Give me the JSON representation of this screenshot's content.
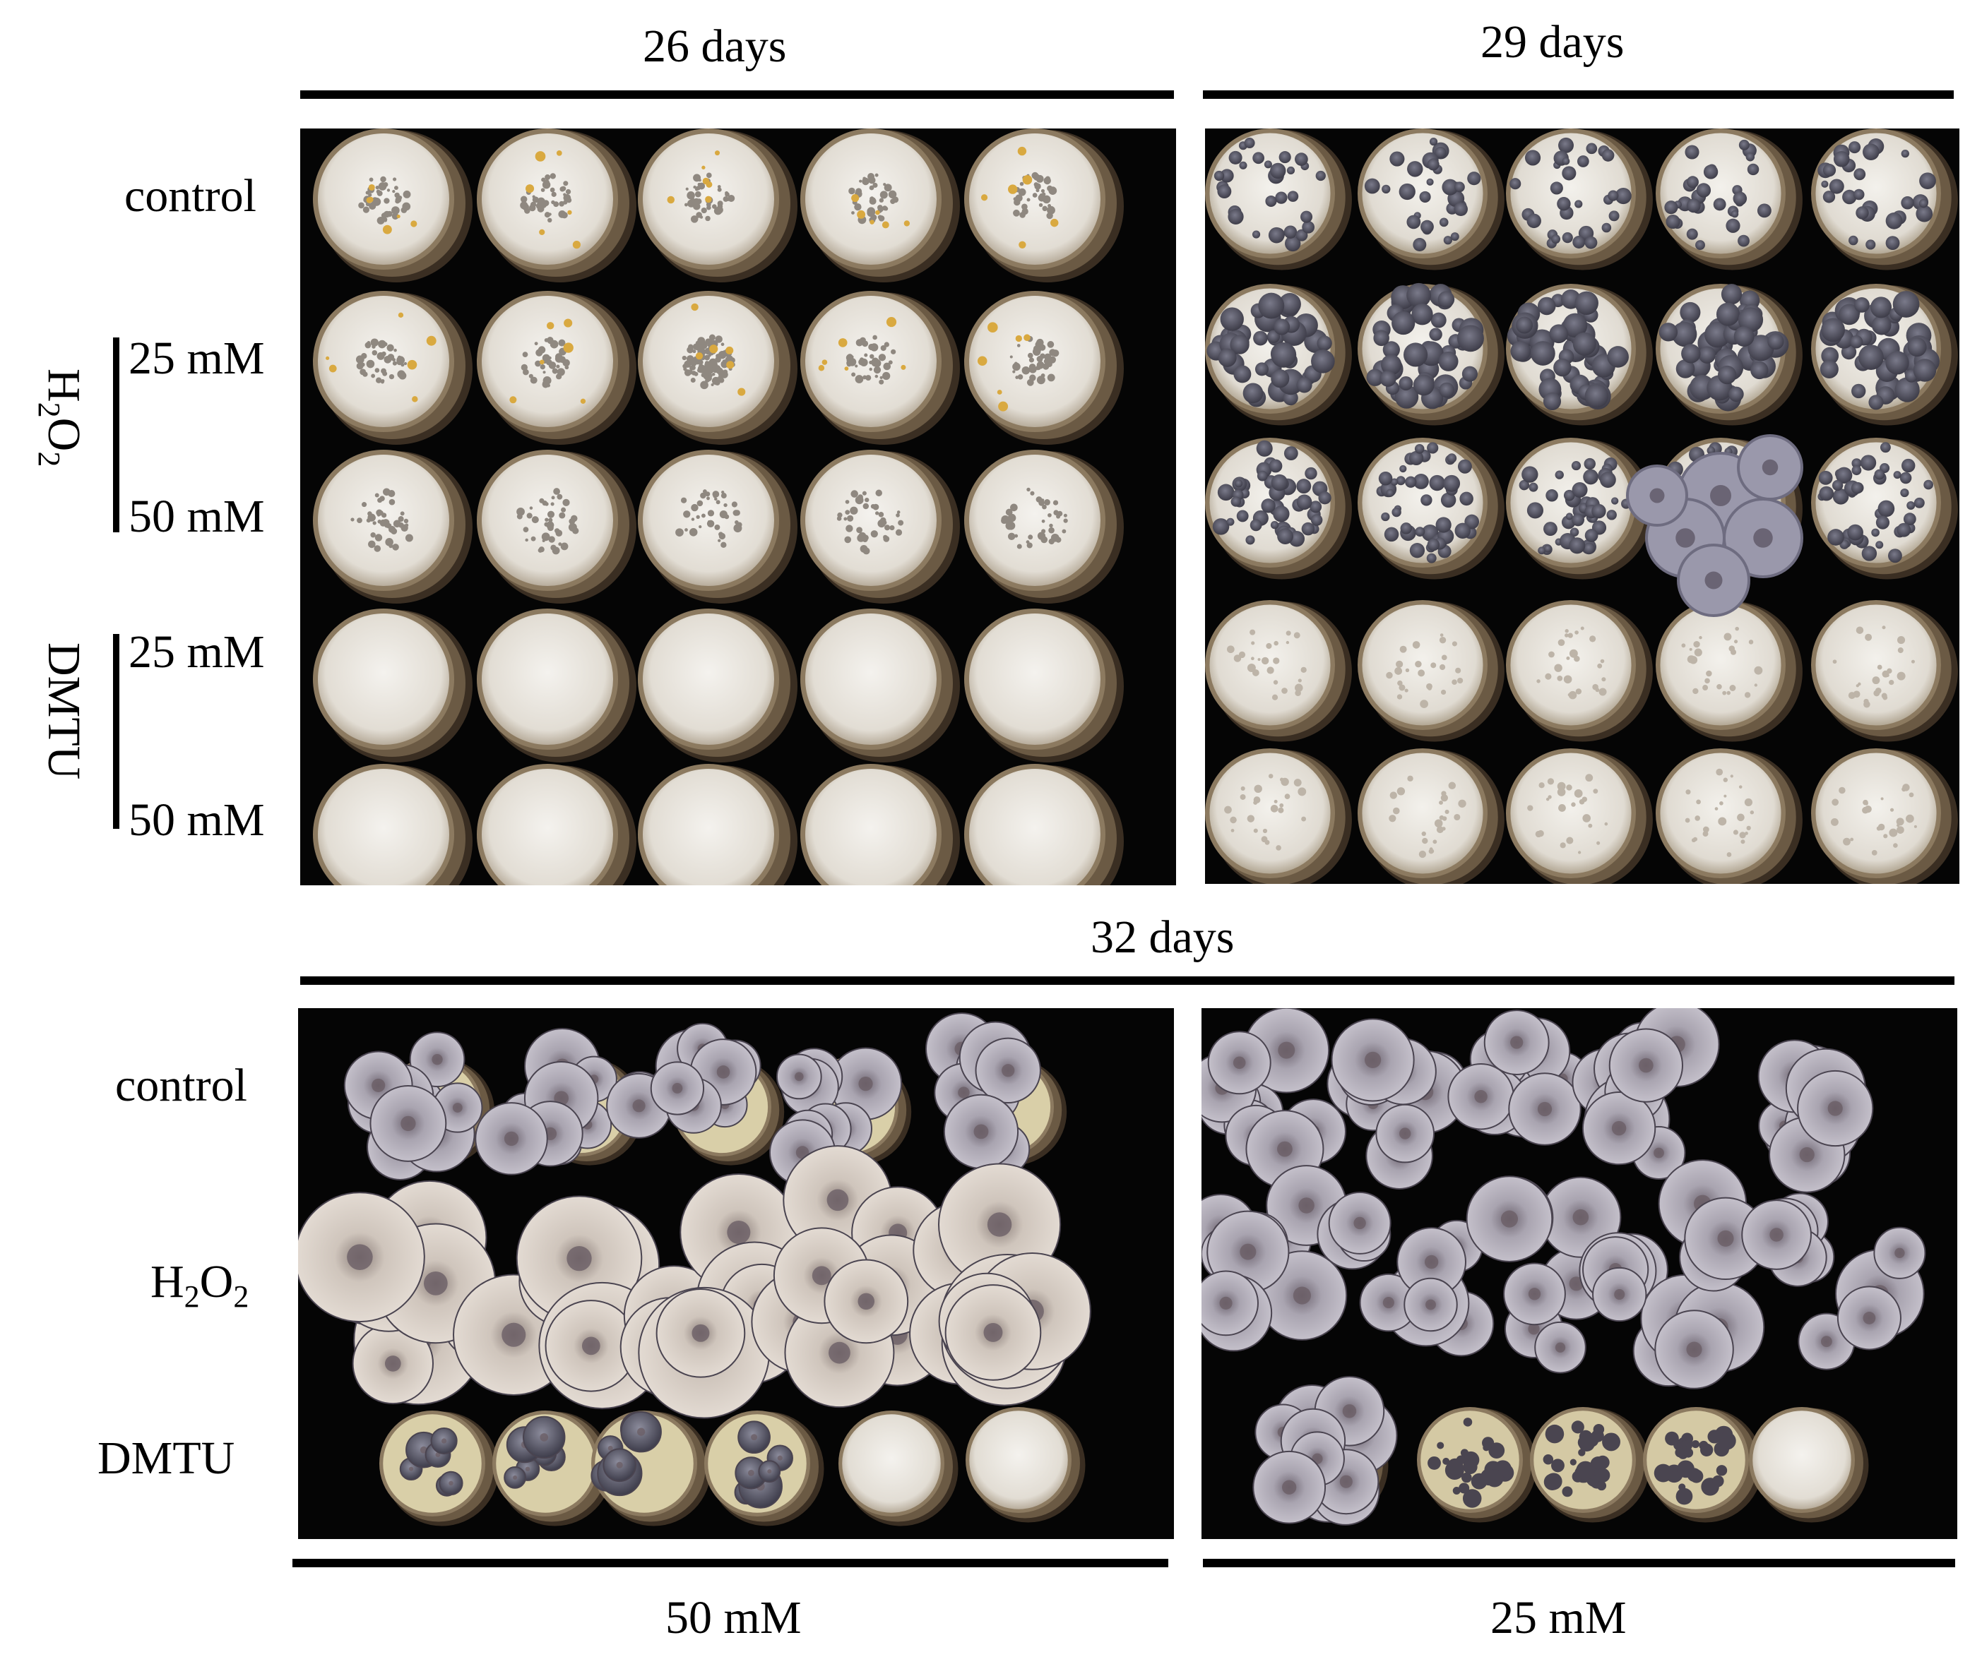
{
  "figure": {
    "headers": {
      "top_left": "26 days",
      "top_right": "29 days",
      "middle": "32 days",
      "bottom_left": "50 mM",
      "bottom_right": "25 mM"
    },
    "top_rows": {
      "control": "control",
      "h2o2_group": "H2O2",
      "dmtu_group": "DMTU",
      "conc_25": "25 mM",
      "conc_50": "50 mM"
    },
    "bottom_rows": {
      "control": "control",
      "h2o2": "H2O2",
      "dmtu": "DMTU"
    },
    "colors": {
      "background": "#050505",
      "mycelium": "#ece9e2",
      "jar_rim": "#6b5a44",
      "mushroom_cap_light": "#d8cfc6",
      "mushroom_cap_dark": "#5a5968",
      "primordia": "#4a4550"
    }
  }
}
